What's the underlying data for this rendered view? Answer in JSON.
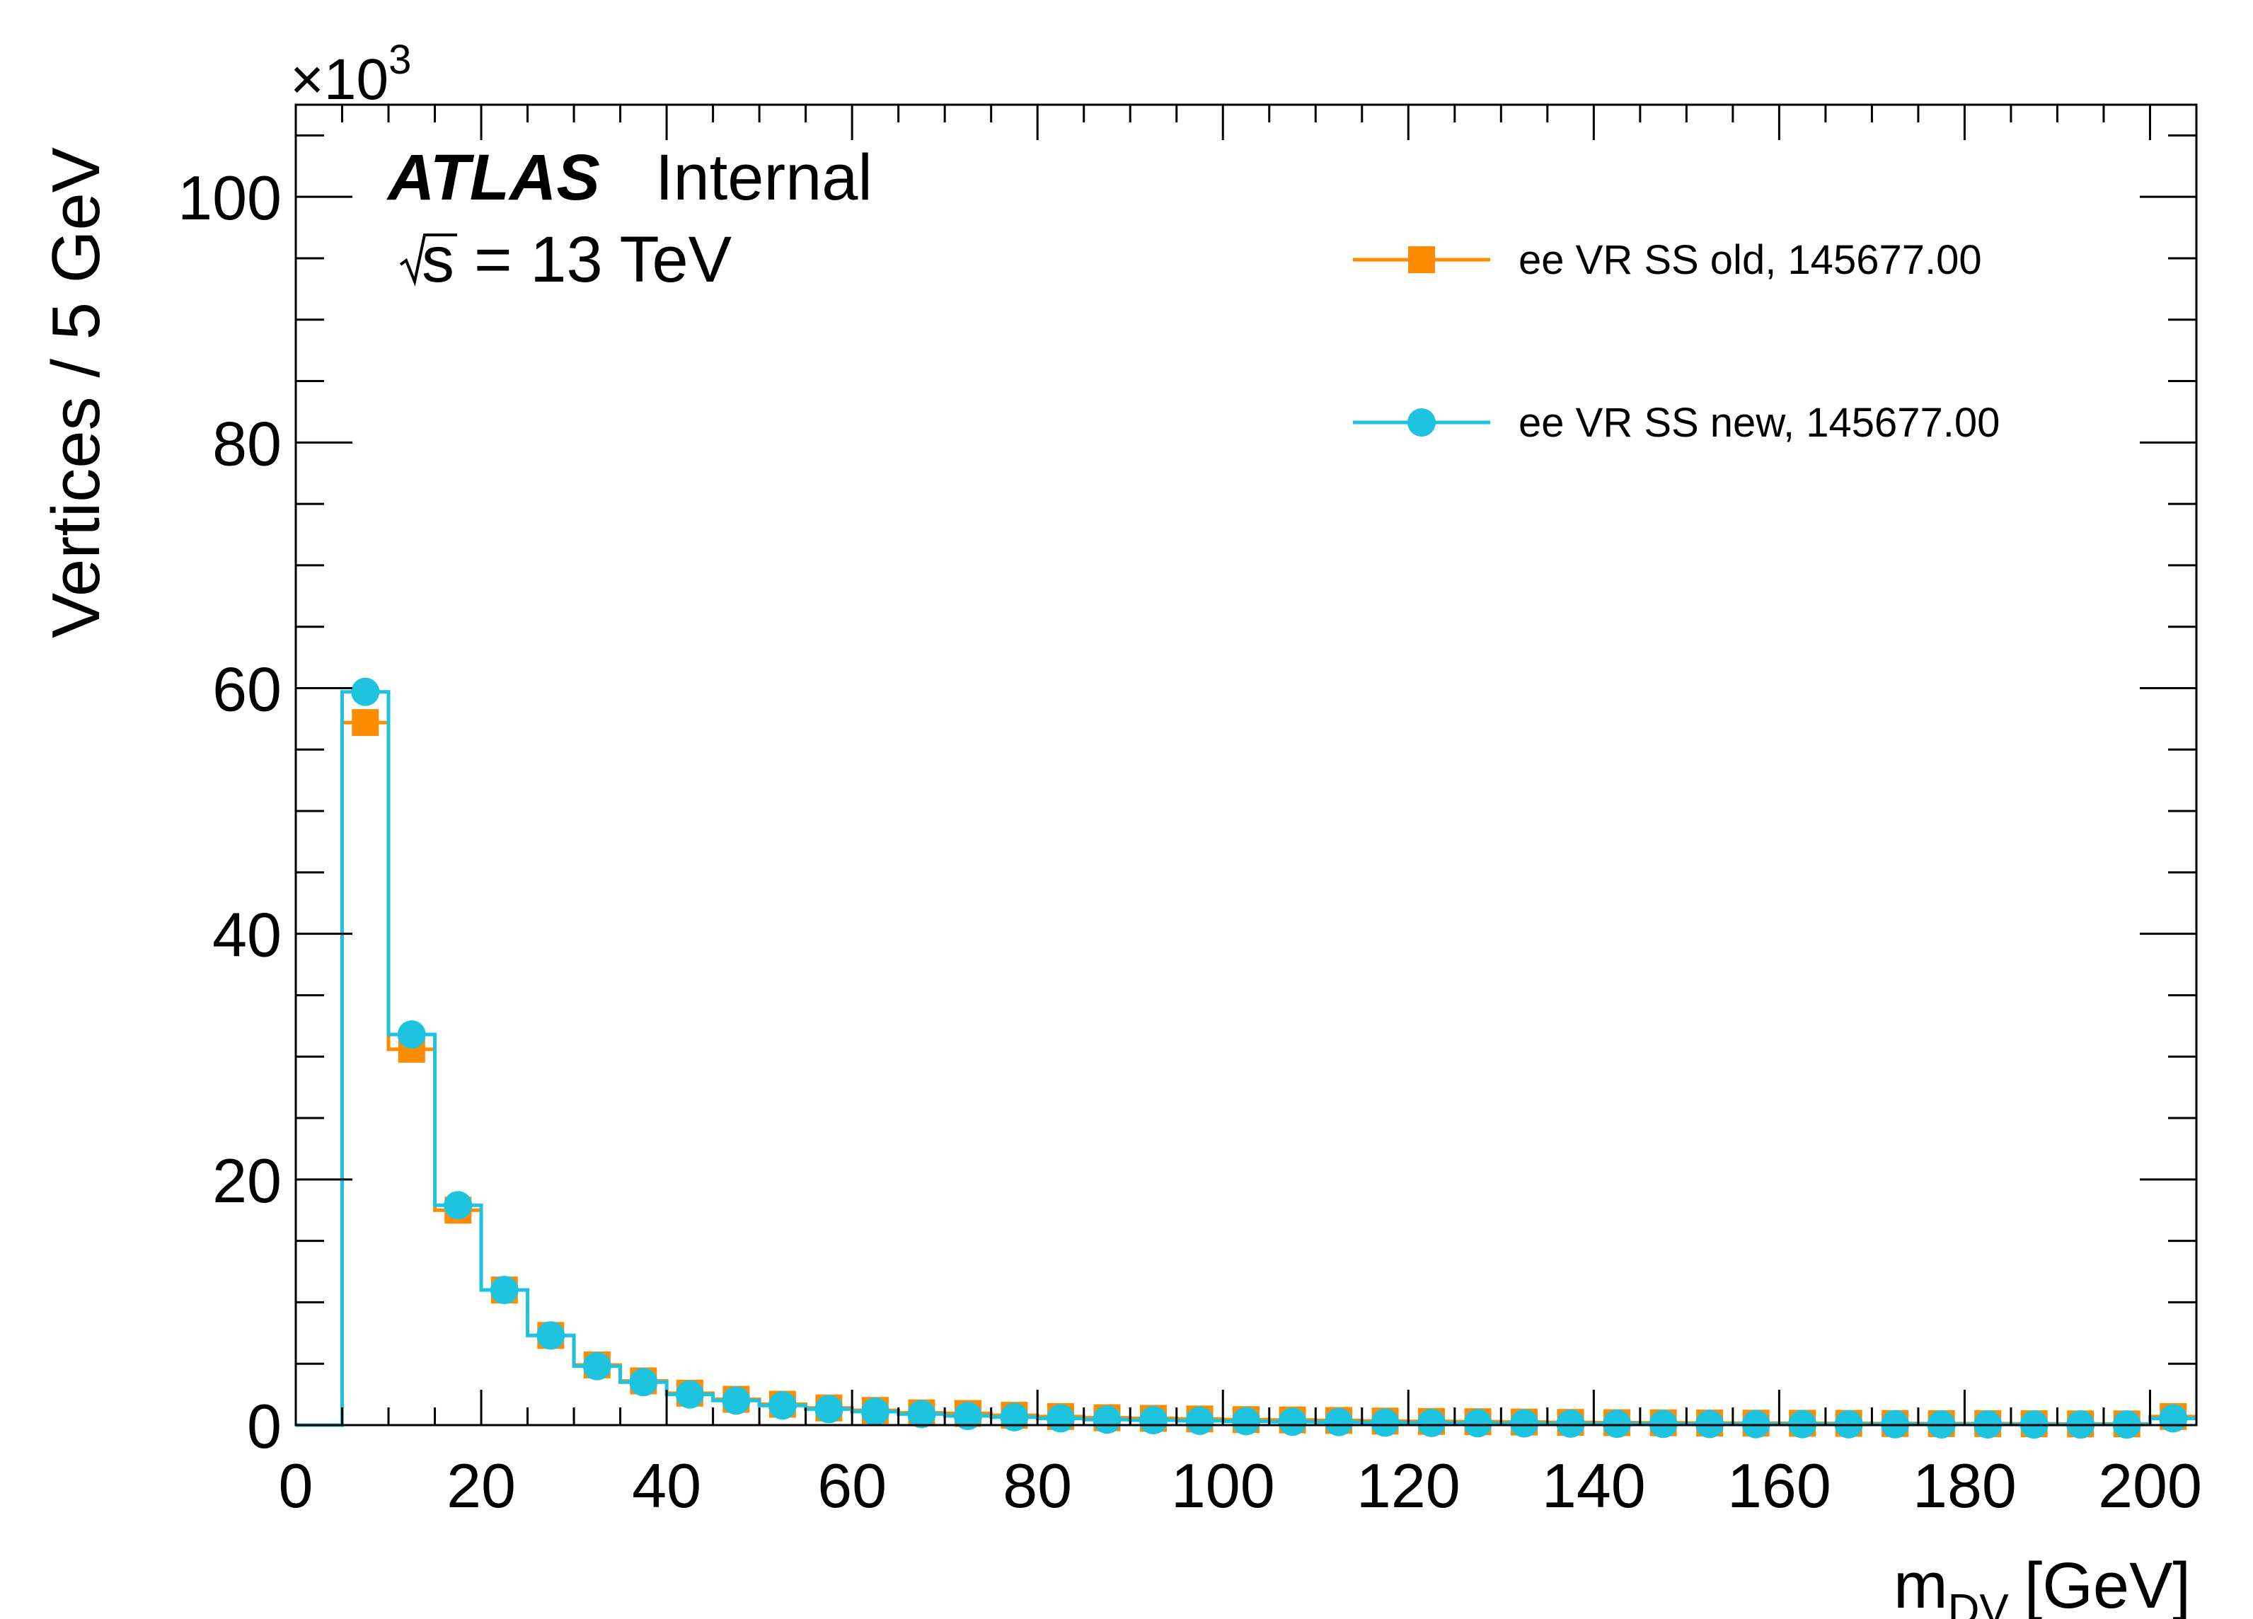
{
  "chart_data": {
    "type": "histogram",
    "ylabel": "Vertices / 5 GeV",
    "xlabel_main": "m",
    "xlabel_sub": "DV",
    "xlabel_unit": "[GeV]",
    "y_multiplier_base": "×10",
    "y_multiplier_exp": "3",
    "xlim": [
      0,
      205
    ],
    "ylim": [
      0,
      107.5
    ],
    "x_ticks": [
      0,
      20,
      40,
      60,
      80,
      100,
      120,
      140,
      160,
      180,
      200
    ],
    "x_tick_labels": [
      "0",
      "20",
      "40",
      "60",
      "80",
      "100",
      "120",
      "140",
      "160",
      "180",
      "200"
    ],
    "y_ticks": [
      0,
      20,
      40,
      60,
      80,
      100
    ],
    "y_tick_labels": [
      "0",
      "20",
      "40",
      "60",
      "80",
      "100"
    ],
    "bin_width": 5,
    "x": [
      7.5,
      12.5,
      17.5,
      22.5,
      27.5,
      32.5,
      37.5,
      42.5,
      47.5,
      52.5,
      57.5,
      62.5,
      67.5,
      72.5,
      77.5,
      82.5,
      87.5,
      92.5,
      97.5,
      102.5,
      107.5,
      112.5,
      117.5,
      122.5,
      127.5,
      132.5,
      137.5,
      142.5,
      147.5,
      152.5,
      157.5,
      162.5,
      167.5,
      172.5,
      177.5,
      182.5,
      187.5,
      192.5,
      197.5,
      202.5
    ],
    "series": [
      {
        "name": "ee VR SS old, 145677.00",
        "marker": "square",
        "color": "#ff8c00",
        "values": [
          57.2,
          30.6,
          17.5,
          11.0,
          7.3,
          4.9,
          3.6,
          2.6,
          2.1,
          1.7,
          1.4,
          1.2,
          1.0,
          0.95,
          0.8,
          0.7,
          0.6,
          0.55,
          0.5,
          0.45,
          0.42,
          0.38,
          0.33,
          0.3,
          0.28,
          0.25,
          0.22,
          0.2,
          0.19,
          0.17,
          0.16,
          0.15,
          0.14,
          0.13,
          0.12,
          0.12,
          0.11,
          0.1,
          0.1,
          0.7
        ]
      },
      {
        "name": "ee VR SS new, 145677.00",
        "marker": "circle",
        "color": "#1ec3e0",
        "values": [
          59.7,
          31.8,
          17.9,
          11.0,
          7.3,
          4.8,
          3.5,
          2.5,
          2.0,
          1.6,
          1.3,
          1.1,
          0.9,
          0.75,
          0.65,
          0.55,
          0.45,
          0.4,
          0.35,
          0.32,
          0.28,
          0.25,
          0.2,
          0.18,
          0.16,
          0.14,
          0.12,
          0.11,
          0.1,
          0.09,
          0.08,
          0.08,
          0.07,
          0.07,
          0.06,
          0.06,
          0.05,
          0.05,
          0.05,
          0.55
        ]
      }
    ],
    "legend_position": "top-right",
    "grid": false
  },
  "labels": {
    "atlas": "ATLAS",
    "internal": "Internal",
    "energy_root": "s",
    "energy_value": "= 13 TeV"
  }
}
